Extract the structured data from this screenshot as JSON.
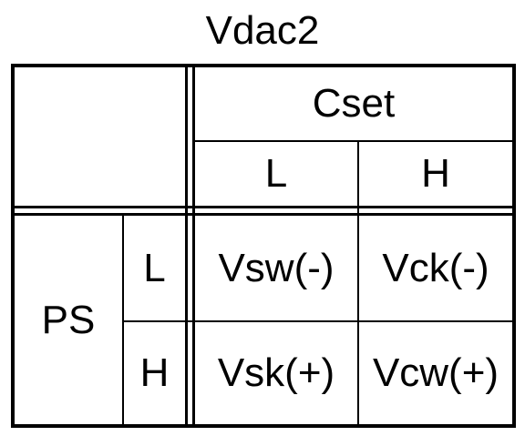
{
  "title": "Vdac2",
  "table": {
    "column_group": "Cset",
    "column_headers": [
      "L",
      "H"
    ],
    "row_group": "PS",
    "row_headers": [
      "L",
      "H"
    ],
    "cells": [
      [
        "Vsw(-)",
        "Vck(-)"
      ],
      [
        "Vsk(+)",
        "Vcw(+)"
      ]
    ]
  }
}
